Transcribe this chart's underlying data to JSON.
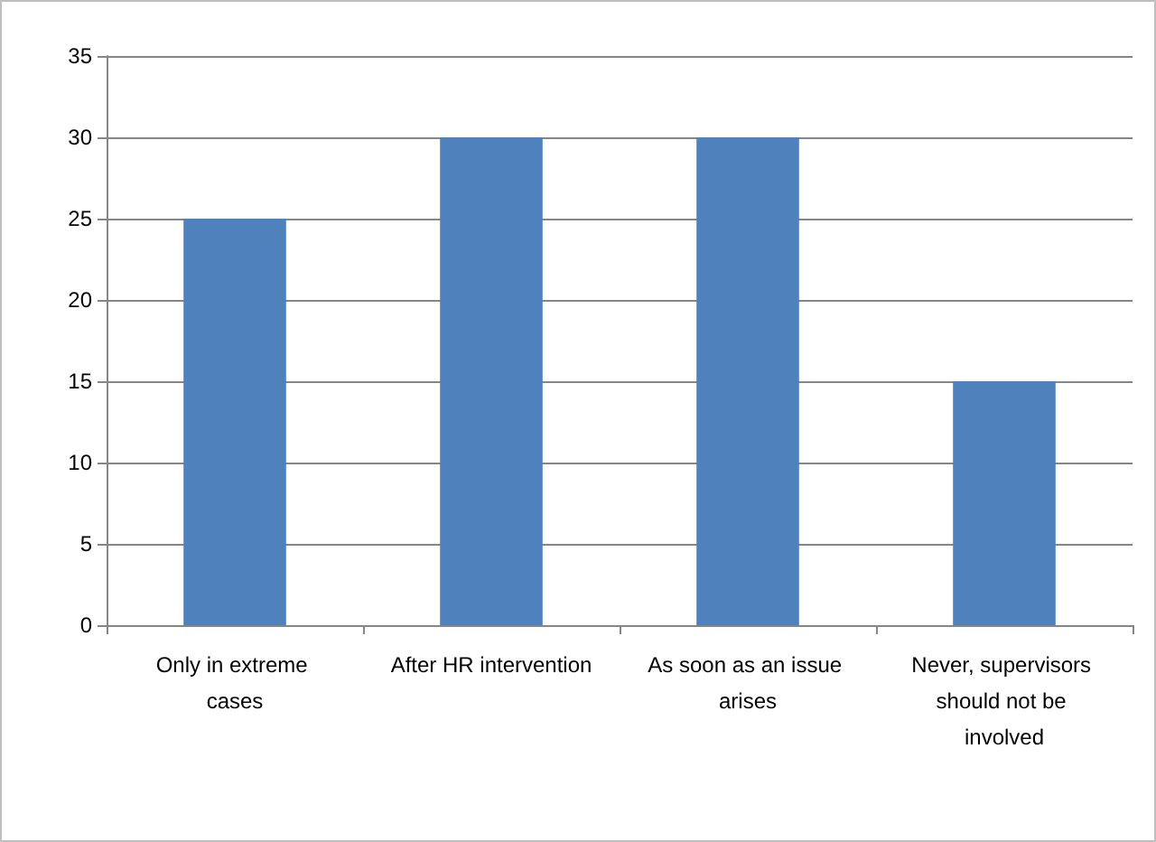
{
  "chart_data": {
    "type": "bar",
    "categories": [
      "Only in extreme cases",
      "After HR intervention",
      "As soon as an issue arises",
      "Never, supervisors should not be involved"
    ],
    "values": [
      25,
      30,
      30,
      15
    ],
    "color": "#4f81bd",
    "ylim": [
      0,
      35
    ],
    "yticks": [
      0,
      5,
      10,
      15,
      20,
      25,
      30,
      35
    ],
    "grid": "y"
  }
}
